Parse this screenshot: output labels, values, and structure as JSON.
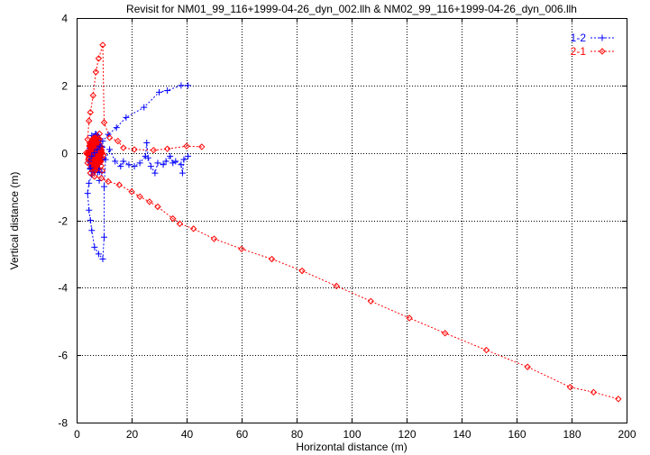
{
  "chart_data": {
    "type": "scatter",
    "title": "Revisit for NM01_99_116+1999-04-26_dyn_002.llh & NM02_99_116+1999-04-26_dyn_006.llh",
    "xlabel": "Horizontal distance (m)",
    "ylabel": "Vertical distance (m)",
    "xlim": [
      0,
      200
    ],
    "ylim": [
      -8,
      4
    ],
    "xticks": [
      "0",
      "20",
      "40",
      "60",
      "80",
      "100",
      "120",
      "140",
      "160",
      "180",
      "200"
    ],
    "yticks": [
      "-8",
      "-6",
      "-4",
      "-2",
      "0",
      "2",
      "4"
    ],
    "grid": true,
    "legend_position": "top-right",
    "series": [
      {
        "name": "1-2",
        "color": "#0000ff",
        "marker": "plus",
        "points": [
          [
            40.5,
            2.0
          ],
          [
            38,
            2.0
          ],
          [
            33,
            1.85
          ],
          [
            30,
            1.8
          ],
          [
            24.5,
            1.35
          ],
          [
            18,
            1.05
          ],
          [
            14.5,
            0.75
          ],
          [
            11.5,
            0.55
          ],
          [
            9.5,
            0.35
          ],
          [
            8.5,
            0.2
          ],
          [
            7.5,
            0.1
          ],
          [
            6.5,
            0.0
          ],
          [
            5.5,
            -0.1
          ],
          [
            4.5,
            -0.25
          ],
          [
            5,
            -0.45
          ],
          [
            5.5,
            -0.65
          ],
          [
            4.5,
            -0.9
          ],
          [
            4,
            -1.2
          ],
          [
            4.5,
            -1.7
          ],
          [
            5,
            -2.0
          ],
          [
            5.5,
            -2.3
          ],
          [
            6.5,
            -2.8
          ],
          [
            8,
            -3.0
          ],
          [
            9.5,
            -3.15
          ],
          [
            10,
            -2.5
          ],
          [
            10,
            -1.0
          ],
          [
            10.5,
            -0.2
          ],
          [
            12,
            0.1
          ],
          [
            14,
            -0.25
          ],
          [
            16,
            -0.4
          ],
          [
            17,
            -0.25
          ],
          [
            19,
            -0.35
          ],
          [
            21,
            -0.4
          ],
          [
            23,
            -0.3
          ],
          [
            25,
            -0.1
          ],
          [
            25.5,
            0.3
          ],
          [
            26,
            -0.15
          ],
          [
            27,
            -0.4
          ],
          [
            28.5,
            -0.6
          ],
          [
            29.5,
            -0.3
          ],
          [
            31.5,
            -0.35
          ],
          [
            32.5,
            -0.25
          ],
          [
            34,
            -0.1
          ],
          [
            35,
            -0.3
          ],
          [
            36,
            -0.25
          ],
          [
            38,
            -0.35
          ],
          [
            38.5,
            -0.6
          ],
          [
            39,
            -0.2
          ],
          [
            40.5,
            -0.1
          ]
        ]
      },
      {
        "name": "2-1",
        "color": "#ff0000",
        "marker": "diamond",
        "points": [
          [
            45.5,
            0.18
          ],
          [
            40,
            0.2
          ],
          [
            33,
            0.12
          ],
          [
            28,
            0.08
          ],
          [
            21,
            0.1
          ],
          [
            17,
            0.15
          ],
          [
            15,
            0.35
          ],
          [
            12,
            0.45
          ],
          [
            10,
            0.9
          ],
          [
            9.5,
            3.2
          ],
          [
            8,
            2.8
          ],
          [
            7,
            2.4
          ],
          [
            6,
            1.7
          ],
          [
            5,
            1.2
          ],
          [
            4.5,
            0.95
          ],
          [
            4,
            0.4
          ],
          [
            3.5,
            0.0
          ],
          [
            4,
            -0.3
          ],
          [
            5,
            -0.6
          ],
          [
            6.5,
            -0.7
          ],
          [
            9,
            -0.75
          ],
          [
            11.5,
            -0.85
          ],
          [
            15.5,
            -0.95
          ],
          [
            20,
            -1.15
          ],
          [
            23,
            -1.3
          ],
          [
            26.5,
            -1.45
          ],
          [
            29.5,
            -1.6
          ],
          [
            35,
            -1.95
          ],
          [
            37.5,
            -2.1
          ],
          [
            42.5,
            -2.25
          ],
          [
            50,
            -2.55
          ],
          [
            60,
            -2.85
          ],
          [
            71,
            -3.15
          ],
          [
            82,
            -3.5
          ],
          [
            94.5,
            -3.95
          ],
          [
            107,
            -4.4
          ],
          [
            121,
            -4.9
          ],
          [
            134,
            -5.35
          ],
          [
            149,
            -5.85
          ],
          [
            164,
            -6.35
          ],
          [
            179.5,
            -6.95
          ],
          [
            188,
            -7.1
          ],
          [
            197,
            -7.3
          ]
        ]
      }
    ]
  }
}
